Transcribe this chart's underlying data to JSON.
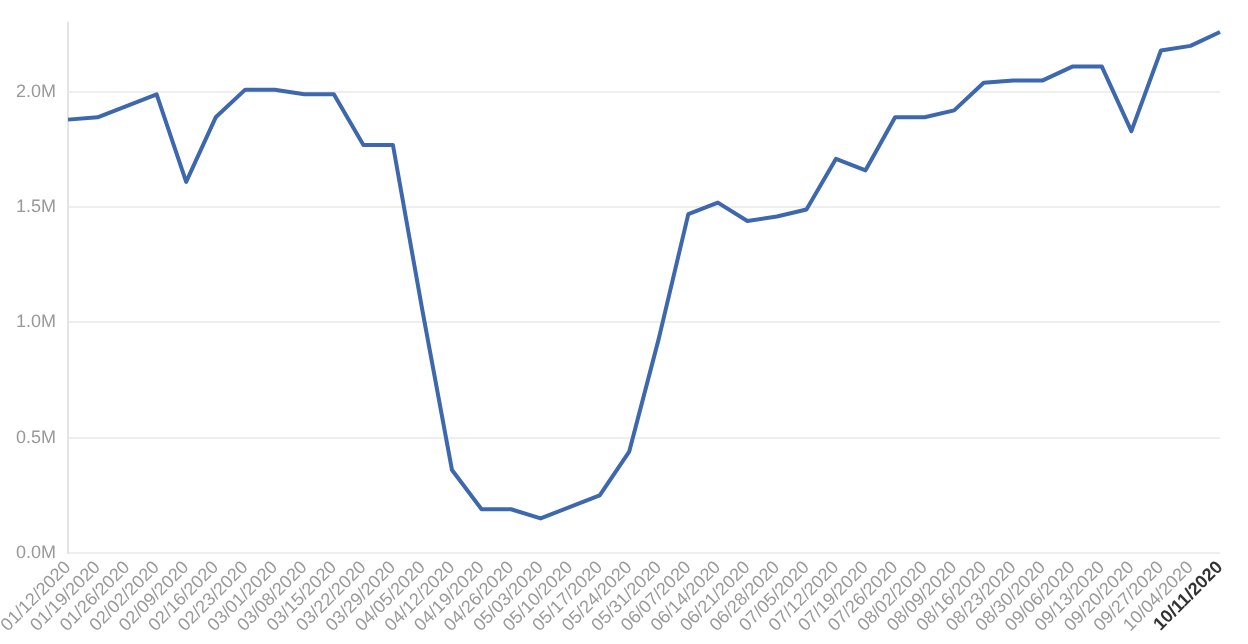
{
  "chart_data": {
    "type": "line",
    "categories": [
      "01/12/2020",
      "01/19/2020",
      "01/26/2020",
      "02/02/2020",
      "02/09/2020",
      "02/16/2020",
      "02/23/2020",
      "03/01/2020",
      "03/08/2020",
      "03/15/2020",
      "03/22/2020",
      "03/29/2020",
      "04/05/2020",
      "04/12/2020",
      "04/19/2020",
      "04/26/2020",
      "05/03/2020",
      "05/10/2020",
      "05/17/2020",
      "05/24/2020",
      "05/31/2020",
      "06/07/2020",
      "06/14/2020",
      "06/21/2020",
      "06/28/2020",
      "07/05/2020",
      "07/12/2020",
      "07/19/2020",
      "07/26/2020",
      "08/02/2020",
      "08/09/2020",
      "08/16/2020",
      "08/23/2020",
      "08/30/2020",
      "09/06/2020",
      "09/13/2020",
      "09/20/2020",
      "09/27/2020",
      "10/04/2020",
      "10/11/2020"
    ],
    "series": [
      {
        "color": "#3d68ad",
        "values": [
          1.88,
          1.89,
          1.94,
          1.99,
          1.61,
          1.89,
          2.01,
          2.01,
          1.99,
          1.99,
          1.77,
          1.77,
          1.05,
          0.36,
          0.19,
          0.19,
          0.15,
          0.2,
          0.25,
          0.44,
          0.93,
          1.47,
          1.52,
          1.44,
          1.46,
          1.49,
          1.71,
          1.66,
          1.89,
          1.89,
          1.92,
          2.04,
          2.05,
          2.05,
          2.11,
          2.11,
          1.83,
          2.18,
          2.2,
          2.26
        ]
      }
    ],
    "ylim": [
      0,
      2.3
    ],
    "yticks": [
      {
        "value": 0,
        "label": "0.0M"
      },
      {
        "value": 0.5,
        "label": "0.5M"
      },
      {
        "value": 1,
        "label": "1.0M"
      },
      {
        "value": 1.5,
        "label": "1.5M"
      },
      {
        "value": 2,
        "label": "2.0M"
      }
    ],
    "grid": "y",
    "legend": false,
    "marker": "none",
    "line_style": "solid"
  }
}
